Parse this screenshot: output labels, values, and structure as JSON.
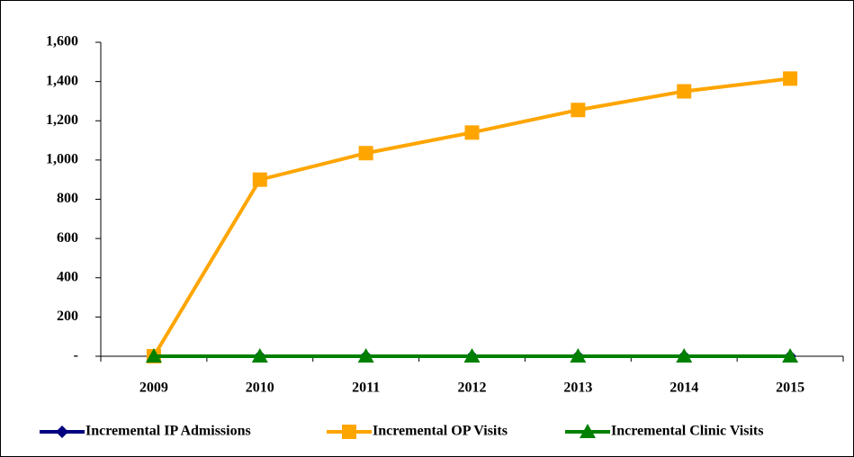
{
  "chart_data": {
    "type": "line",
    "categories": [
      "2009",
      "2010",
      "2011",
      "2012",
      "2013",
      "2014",
      "2015"
    ],
    "series": [
      {
        "name": "Incremental IP Admissions",
        "color": "#000080",
        "marker": "diamond",
        "values": [
          0,
          0,
          0,
          0,
          0,
          0,
          0
        ]
      },
      {
        "name": "Incremental OP Visits",
        "color": "#FFA500",
        "marker": "square",
        "values": [
          0,
          900,
          1035,
          1140,
          1255,
          1350,
          1415
        ]
      },
      {
        "name": "Incremental Clinic Visits",
        "color": "#008000",
        "marker": "triangle",
        "values": [
          0,
          0,
          0,
          0,
          0,
          0,
          0
        ]
      }
    ],
    "ylim": [
      0,
      1600
    ],
    "yticks": [
      {
        "value": 0,
        "label": "-"
      },
      200,
      400,
      600,
      800,
      {
        "value": 1000,
        "label": "1,000"
      },
      {
        "value": 1200,
        "label": "1,200"
      },
      {
        "value": 1400,
        "label": "1,400"
      },
      {
        "value": 1600,
        "label": "1,600"
      }
    ],
    "grid": false,
    "legend": "bottom"
  }
}
